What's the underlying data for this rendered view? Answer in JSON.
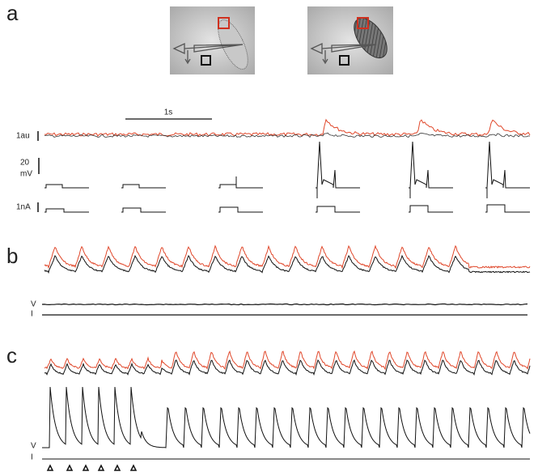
{
  "panels": [
    {
      "label": "a",
      "scale_time": "1s",
      "scale_fluor": "1au",
      "scale_voltage": [
        "20",
        "mV"
      ],
      "scale_current": "1nA"
    },
    {
      "label": "b",
      "trace_labels": [
        "V",
        "I"
      ]
    },
    {
      "label": "c",
      "trace_labels": [
        "V",
        "I"
      ]
    }
  ]
}
